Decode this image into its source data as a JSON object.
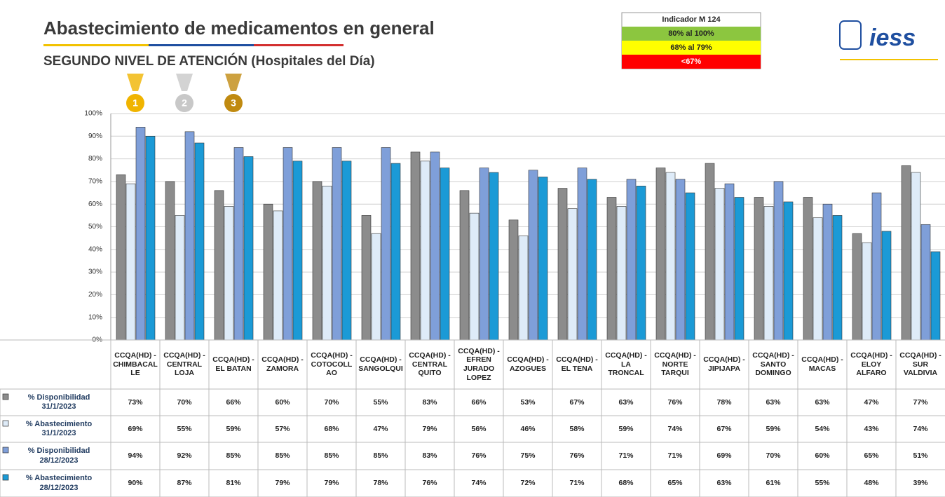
{
  "header": {
    "title": "Abastecimiento de medicamentos en general",
    "subtitle": "SEGUNDO NIVEL DE ATENCIÓN (Hospitales del Día)"
  },
  "indicator": {
    "title": "Indicador M 124",
    "levels": [
      {
        "label": "80% al 100%",
        "color": "#8cc63f"
      },
      {
        "label": "68% al 79%",
        "color": "#ffff00"
      },
      {
        "label": "<67%",
        "color": "#ff0000"
      }
    ]
  },
  "logo": "iess",
  "medals": [
    "1",
    "2",
    "3"
  ],
  "chart_data": {
    "type": "bar",
    "categories": [
      "CCQA(HD) - CHIMBACALLE",
      "CCQA(HD) - CENTRAL LOJA",
      "CCQA(HD) - EL BATAN",
      "CCQA(HD) - ZAMORA",
      "CCQA(HD) - COTOCOLLAO",
      "CCQA(HD) - SANGOLQUI",
      "CCQA(HD) - CENTRAL QUITO",
      "CCQA(HD) - EFREN JURADO LOPEZ",
      "CCQA(HD) - AZOGUES",
      "CCQA(HD) - EL TENA",
      "CCQA(HD) - LA TRONCAL",
      "CCQA(HD) - NORTE TARQUI",
      "CCQA(HD) - JIPIJAPA",
      "CCQA(HD) - SANTO DOMINGO",
      "CCQA(HD) - MACAS",
      "CCQA(HD) - ELOY ALFARO",
      "CCQA(HD) - SUR VALDIVIA"
    ],
    "series": [
      {
        "name": "% Disponibilidad 31/1/2023",
        "color": "#8c8c8c",
        "values": [
          73,
          70,
          66,
          60,
          70,
          55,
          83,
          66,
          53,
          67,
          63,
          76,
          78,
          63,
          63,
          47,
          77
        ],
        "value_labels": [
          "73%",
          "70%",
          "66%",
          "60%",
          "70%",
          "55%",
          "83%",
          "66%",
          "53%",
          "67%",
          "63%",
          "76%",
          "78%",
          "63%",
          "63%",
          "47%",
          "77%"
        ]
      },
      {
        "name": "% Abastecimiento 31/1/2023",
        "color": "#deebf8",
        "values": [
          69,
          55,
          59,
          57,
          68,
          47,
          79,
          56,
          46,
          58,
          59,
          74,
          67,
          59,
          54,
          43,
          74
        ],
        "value_labels": [
          "69%",
          "55%",
          "59%",
          "57%",
          "68%",
          "47%",
          "79%",
          "56%",
          "46%",
          "58%",
          "59%",
          "74%",
          "67%",
          "59%",
          "54%",
          "43%",
          "74%"
        ]
      },
      {
        "name": "% Disponibilidad 28/12/2023",
        "color": "#7f9fd9",
        "values": [
          94,
          92,
          85,
          85,
          85,
          85,
          83,
          76,
          75,
          76,
          71,
          71,
          69,
          70,
          60,
          65,
          51
        ],
        "value_labels": [
          "94%",
          "92%",
          "85%",
          "85%",
          "85%",
          "85%",
          "83%",
          "76%",
          "75%",
          "76%",
          "71%",
          "71%",
          "69%",
          "70%",
          "60%",
          "65%",
          "51%"
        ]
      },
      {
        "name": "% Abastecimiento 28/12/2023",
        "color": "#1b9ad6",
        "values": [
          90,
          87,
          81,
          79,
          79,
          78,
          76,
          74,
          72,
          71,
          68,
          65,
          63,
          61,
          55,
          48,
          39
        ],
        "value_labels": [
          "90%",
          "87%",
          "81%",
          "79%",
          "79%",
          "78%",
          "76%",
          "74%",
          "72%",
          "71%",
          "68%",
          "65%",
          "63%",
          "61%",
          "55%",
          "48%",
          "39%"
        ]
      }
    ],
    "ylim": [
      0,
      100
    ],
    "yticks": [
      {
        "value": 0,
        "label": "0%"
      },
      {
        "value": 10,
        "label": "10%"
      },
      {
        "value": 20,
        "label": "20%"
      },
      {
        "value": 30,
        "label": "30%"
      },
      {
        "value": 40,
        "label": "40%"
      },
      {
        "value": 50,
        "label": "50%"
      },
      {
        "value": 60,
        "label": "60%"
      },
      {
        "value": 70,
        "label": "70%"
      },
      {
        "value": 80,
        "label": "80%"
      },
      {
        "value": 90,
        "label": "90%"
      },
      {
        "value": 100,
        "label": "100%"
      }
    ],
    "grid": true
  }
}
